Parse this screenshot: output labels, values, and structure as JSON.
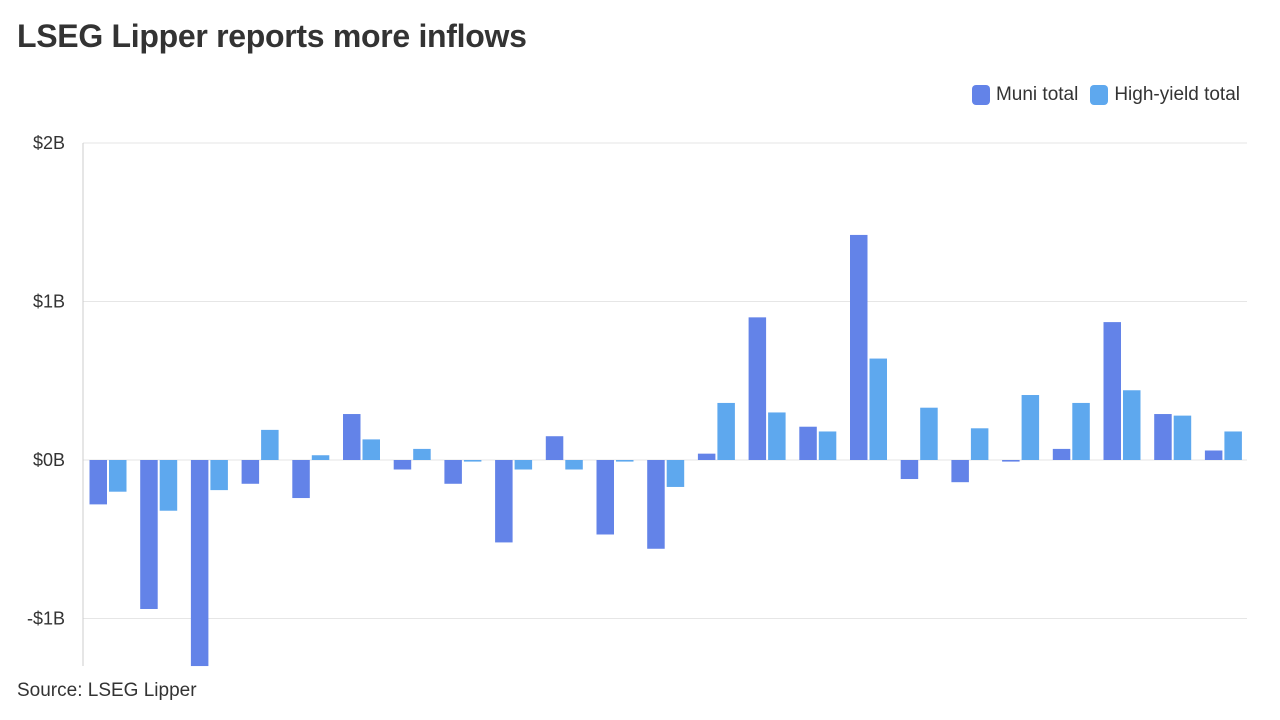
{
  "title": "LSEG Lipper reports more inflows",
  "source": "Source: LSEG Lipper",
  "colors": {
    "muni": "#6383e8",
    "hy": "#5ea8ee",
    "grid": "#e6e6e6",
    "axis": "#cccccc"
  },
  "chart_data": {
    "type": "bar",
    "title": "LSEG Lipper reports more inflows",
    "xlabel": "",
    "ylabel": "",
    "ylim": [
      -1.3,
      2
    ],
    "yticks": [
      2,
      1,
      0,
      -1
    ],
    "ytick_labels": [
      "$2B",
      "$1B",
      "$0B",
      "-$1B"
    ],
    "legend_position": "top-right",
    "grid": true,
    "series": [
      {
        "name": "Muni total",
        "color": "#6383e8",
        "values": [
          -0.28,
          -0.94,
          -1.3,
          -0.15,
          -0.24,
          0.29,
          -0.06,
          -0.15,
          -0.52,
          0.15,
          -0.47,
          -0.56,
          0.04,
          0.9,
          0.21,
          1.42,
          -0.12,
          -0.14,
          -0.01,
          0.07,
          0.87,
          0.29,
          0.06
        ]
      },
      {
        "name": "High-yield total",
        "color": "#5ea8ee",
        "values": [
          -0.2,
          -0.32,
          -0.19,
          0.19,
          0.03,
          0.13,
          0.07,
          -0.01,
          -0.06,
          -0.06,
          -0.01,
          -0.17,
          0.36,
          0.3,
          0.18,
          0.64,
          0.33,
          0.2,
          0.41,
          0.36,
          0.44,
          0.28,
          0.18
        ]
      }
    ]
  }
}
